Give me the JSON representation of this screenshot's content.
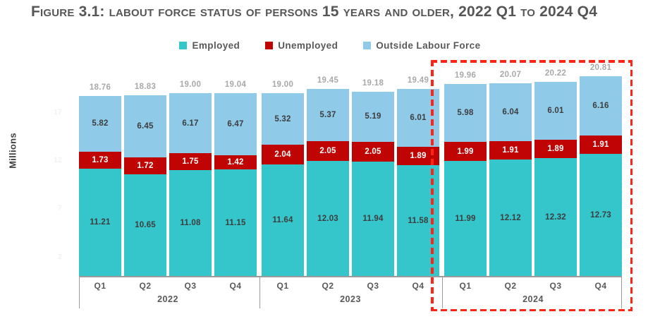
{
  "title": "Figure 3.1: labout force status of persons 15 years and older, 2022 Q1 to 2024 Q4",
  "chart_data": {
    "type": "bar",
    "stacked": true,
    "title": "Figure 3.1: labout force status of persons 15 years and older, 2022 Q1 to 2024 Q4",
    "xlabel": "",
    "ylabel": "Millions",
    "unit": "Millions",
    "legend_position": "top",
    "grid": false,
    "years": [
      "2022",
      "2023",
      "2024"
    ],
    "quarters": [
      "Q1",
      "Q2",
      "Q3",
      "Q4"
    ],
    "categories": [
      "2022 Q1",
      "2022 Q2",
      "2022 Q3",
      "2022 Q4",
      "2023 Q1",
      "2023 Q2",
      "2023 Q3",
      "2023 Q4",
      "2024 Q1",
      "2024 Q2",
      "2024 Q3",
      "2024 Q4"
    ],
    "series": [
      {
        "name": "Employed",
        "color": "#35C6CB",
        "label_color": "#3d3d3d",
        "values": [
          11.21,
          10.65,
          11.08,
          11.15,
          11.64,
          12.03,
          11.94,
          11.58,
          11.99,
          12.12,
          12.32,
          12.73
        ]
      },
      {
        "name": "Unemployed",
        "color": "#C00404",
        "label_color": "#ffffff",
        "values": [
          1.73,
          1.72,
          1.75,
          1.42,
          2.04,
          2.05,
          2.05,
          1.89,
          1.99,
          1.91,
          1.89,
          1.91
        ]
      },
      {
        "name": "Outside Labour Force",
        "color": "#8FCBE9",
        "label_color": "#3d3d3d",
        "values": [
          5.82,
          6.45,
          6.17,
          6.47,
          5.32,
          5.37,
          5.19,
          6.01,
          5.98,
          6.04,
          6.01,
          6.16
        ]
      }
    ],
    "totals": [
      18.76,
      18.83,
      19.0,
      19.04,
      19.0,
      19.45,
      19.18,
      19.49,
      19.96,
      20.07,
      20.22,
      20.81
    ],
    "y_ticks": [
      2,
      7,
      12,
      17
    ],
    "ylim": [
      0,
      22
    ],
    "highlight": {
      "group": "2024",
      "color": "#FF2416",
      "style": "dashed"
    }
  },
  "colors": {
    "title_text": "#565656",
    "legend_text": "#595959",
    "total_label": "#a9a9a9",
    "axis_line": "#9b9b9b",
    "highlight": "#FF2416"
  }
}
